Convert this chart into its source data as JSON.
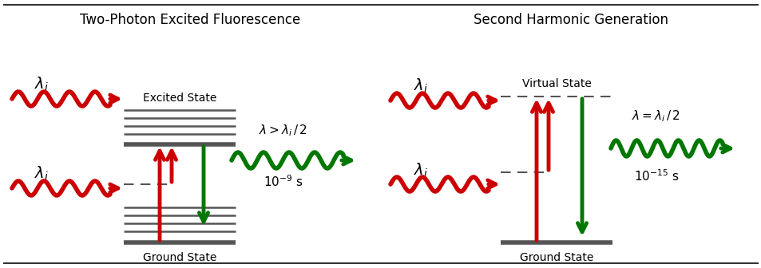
{
  "bg_color": "#ffffff",
  "dark_line_color": "#555555",
  "red_color": "#cc0000",
  "green_color": "#007700",
  "title_tpef": "Two-Photon Excited Fluorescence",
  "title_shg": "Second Harmonic Generation",
  "label_excited": "Excited State",
  "label_ground": "Ground State",
  "label_virtual": "Virtual State",
  "label_ground2": "Ground State"
}
